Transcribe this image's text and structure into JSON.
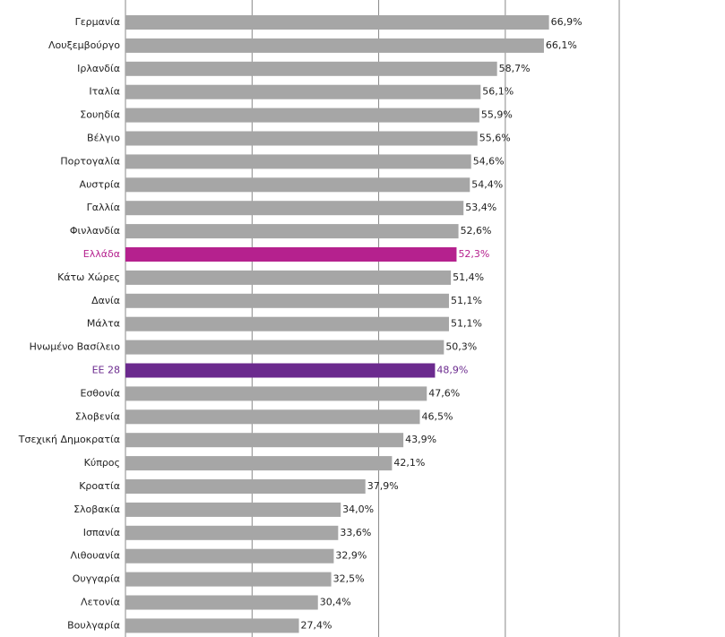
{
  "chart_data": {
    "type": "bar",
    "orientation": "horizontal",
    "categories": [
      "Γερμανία",
      "Λουξεμβούργο",
      "Ιρλανδία",
      "Ιταλία",
      "Σουηδία",
      "Βέλγιο",
      "Πορτογαλία",
      "Αυστρία",
      "Γαλλία",
      "Φινλανδία",
      "Ελλάδα",
      "Κάτω Χώρες",
      "Δανία",
      "Μάλτα",
      "Ηνωμένο Βασίλειο",
      "ΕΕ 28",
      "Εσθονία",
      "Σλοβενία",
      "Τσεχική Δημοκρατία",
      "Κύπρος",
      "Κροατία",
      "Σλοβακία",
      "Ισπανία",
      "Λιθουανία",
      "Ουγγαρία",
      "Λετονία",
      "Βουλγαρία"
    ],
    "values": [
      66.9,
      66.1,
      58.7,
      56.1,
      55.9,
      55.6,
      54.6,
      54.4,
      53.4,
      52.6,
      52.3,
      51.4,
      51.1,
      51.1,
      50.3,
      48.9,
      47.6,
      46.5,
      43.9,
      42.1,
      37.9,
      34.0,
      33.6,
      32.9,
      32.5,
      30.4,
      27.4
    ],
    "value_labels": [
      "66,9%",
      "66,1%",
      "58,7%",
      "56,1%",
      "55,9%",
      "55,6%",
      "54,6%",
      "54,4%",
      "53,4%",
      "52,6%",
      "52,3%",
      "51,4%",
      "51,1%",
      "51,1%",
      "50,3%",
      "48,9%",
      "47,6%",
      "46,5%",
      "43,9%",
      "42,1%",
      "37,9%",
      "34,0%",
      "33,6%",
      "32,9%",
      "32,5%",
      "30,4%",
      "27,4%"
    ],
    "colors": [
      "#a6a6a6",
      "#a6a6a6",
      "#a6a6a6",
      "#a6a6a6",
      "#a6a6a6",
      "#a6a6a6",
      "#a6a6a6",
      "#a6a6a6",
      "#a6a6a6",
      "#a6a6a6",
      "#b5218e",
      "#a6a6a6",
      "#a6a6a6",
      "#a6a6a6",
      "#a6a6a6",
      "#6b2a8e",
      "#a6a6a6",
      "#a6a6a6",
      "#a6a6a6",
      "#a6a6a6",
      "#a6a6a6",
      "#a6a6a6",
      "#a6a6a6",
      "#a6a6a6",
      "#a6a6a6",
      "#a6a6a6",
      "#a6a6a6"
    ],
    "xlim": [
      0,
      78
    ],
    "xticks": [
      0,
      20,
      40,
      60
    ],
    "grid": true
  }
}
